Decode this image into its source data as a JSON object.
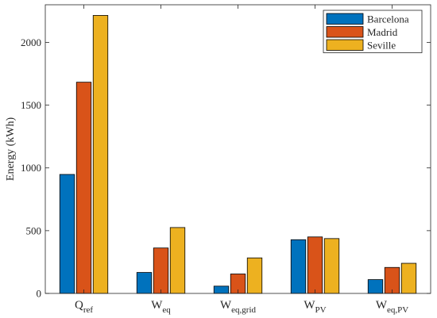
{
  "chart_data": {
    "type": "bar",
    "title": "",
    "xlabel": "",
    "ylabel": "Energy (kWh)",
    "ylim": [
      0,
      2300
    ],
    "yticks": [
      0,
      500,
      1000,
      1500,
      2000
    ],
    "grid": false,
    "legend_position": "top-right",
    "categories": [
      {
        "main": "Q",
        "sub": "ref"
      },
      {
        "main": "W",
        "sub": "eq"
      },
      {
        "main": "W",
        "sub": "eq,grid"
      },
      {
        "main": "W",
        "sub": "PV"
      },
      {
        "main": "W",
        "sub": "eq,PV"
      }
    ],
    "series": [
      {
        "name": "Barcelona",
        "color": "#0072BD",
        "values": [
          948,
          167,
          58,
          428,
          110
        ]
      },
      {
        "name": "Madrid",
        "color": "#D95319",
        "values": [
          1683,
          362,
          155,
          450,
          207
        ]
      },
      {
        "name": "Seville",
        "color": "#EDB120",
        "values": [
          2215,
          525,
          283,
          437,
          240
        ]
      }
    ]
  }
}
